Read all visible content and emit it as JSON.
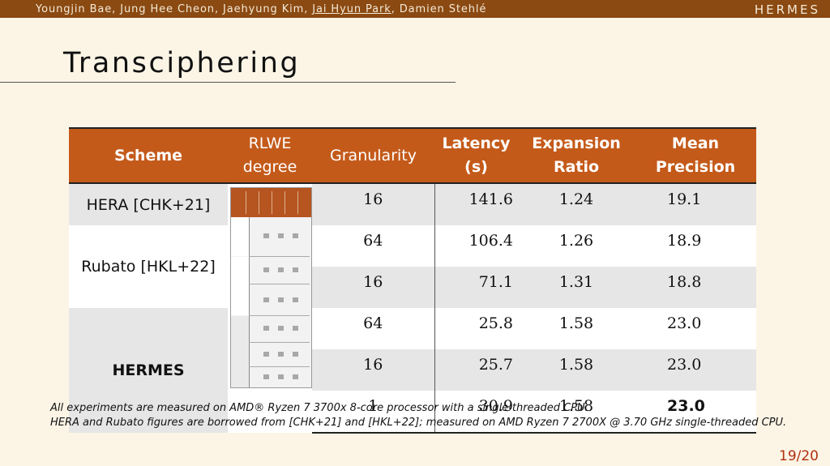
{
  "header": {
    "authors_before": "Youngjin Bae, Jung Hee Cheon, Jaehyung Kim, ",
    "author_highlight": "Jai Hyun Park",
    "authors_after": ", Damien Stehlé",
    "brand": "HERMES"
  },
  "title": "Transciphering",
  "table": {
    "headers": {
      "scheme": "Scheme",
      "rlwe_line1": "RLWE",
      "rlwe_line2": "degree",
      "granularity": "Granularity",
      "latency": "Latency (s)",
      "expansion_line1": "Expansion",
      "expansion_line2": "Ratio",
      "mean_line1": "Mean",
      "mean_line2": "Precision"
    },
    "schemes": {
      "hera": "HERA [CHK+21]",
      "rubato": "Rubato [HKL+22]",
      "hermes": "HERMES"
    },
    "rows": [
      {
        "granularity": "16",
        "latency": "141.6",
        "expansion": "1.24",
        "precision": "19.1"
      },
      {
        "granularity": "64",
        "latency": "106.4",
        "expansion": "1.26",
        "precision": "18.9"
      },
      {
        "granularity": "16",
        "latency": "71.1",
        "expansion": "1.31",
        "precision": "18.8"
      },
      {
        "granularity": "64",
        "latency": "25.8",
        "expansion": "1.58",
        "precision": "23.0"
      },
      {
        "granularity": "16",
        "latency": "25.7",
        "expansion": "1.58",
        "precision": "23.0"
      },
      {
        "granularity": "1",
        "latency": "30.9",
        "expansion": "1.58",
        "precision": "23.0"
      }
    ]
  },
  "notes": {
    "line1": "All experiments are measured on AMD® Ryzen 7 3700x 8-core processor with a single-threaded CPU.",
    "line2": "HERA and Rubato figures are borrowed from [CHK+21] and [HKL+22]; measured on AMD Ryzen 7 2700X @ 3.70 GHz single-threaded CPU."
  },
  "page_number": "19/20",
  "colors": {
    "header_bar": "#8a4a12",
    "table_header": "#c45a1a",
    "background": "#fcf5e6",
    "page_number": "#b03010"
  }
}
